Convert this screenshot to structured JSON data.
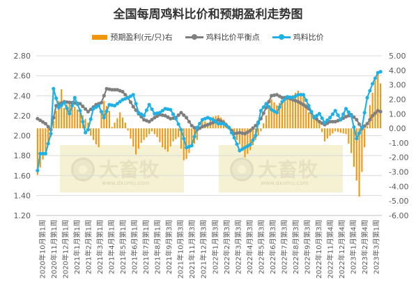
{
  "page": {
    "title": "全国每周鸡料比价和预期盈利走势图",
    "watermark_text": "大畜牧",
    "watermark_url": "www.dxumu.com"
  },
  "colors": {
    "bar": "#f0960f",
    "ratio_avg": "#7f7f7f",
    "ratio": "#1fb1e6",
    "grid": "#d9d9d9",
    "watermark": "#f5f2d3"
  },
  "chart_data": {
    "type": "bar",
    "title": "全国每周鸡料比价和预期盈利走势图",
    "legend_position": "top",
    "grid": true,
    "y_left": {
      "min": 1.2,
      "max": 2.8,
      "step": 0.2,
      "ticks": [
        "1.20",
        "1.40",
        "1.60",
        "1.80",
        "2.00",
        "2.20",
        "2.40",
        "2.60",
        "2.80"
      ]
    },
    "y_right": {
      "min": -6,
      "max": 5,
      "step": 1,
      "ticks": [
        "-6.00",
        "-5.00",
        "-4.00",
        "-3.00",
        "-2.00",
        "-1.00",
        "0.00",
        "1.00",
        "2.00",
        "3.00",
        "4.00",
        "5.00"
      ]
    },
    "x_labels": [
      "2020年10月第1周",
      "2020年11月第1周",
      "2020年12月第1周",
      "2021年1月第1周",
      "2021年2月第1周",
      "2021年3月第1周",
      "2021年4月第1周",
      "2021年5月第1周",
      "2021年6月第1周",
      "2021年7月第1周",
      "2021年8月第1周",
      "2021年9月第3周",
      "2021年10月第3周",
      "2021年11月第3周",
      "2021年12月第3周",
      "2022年1月第3周",
      "2022年2月第3周",
      "2022年3月第3周",
      "2022年4月第3周",
      "2022年5月第3周",
      "2022年6月第3周",
      "2022年7月第3周",
      "2022年8月第3周",
      "2022年9月第3周",
      "2022年10月第3周",
      "2022年11月第4周",
      "2022年12月第4周",
      "2023年1月第4周",
      "2023年2月第4周",
      "2023年3月第1周"
    ],
    "week_count": 130,
    "series": [
      {
        "name": "预期盈利(元/只)右",
        "type": "bar",
        "axis": "right",
        "anchors": [
          [
            0,
            -3.2
          ],
          [
            1,
            -2.7
          ],
          [
            3,
            -1.6
          ],
          [
            5,
            -0.6
          ],
          [
            6,
            0.5
          ],
          [
            8,
            1.9
          ],
          [
            9,
            2.7
          ],
          [
            10,
            1.4
          ],
          [
            12,
            1.9
          ],
          [
            15,
            1.3
          ],
          [
            17,
            0.9
          ],
          [
            19,
            0.4
          ],
          [
            20,
            -0.5
          ],
          [
            22,
            -1.1
          ],
          [
            23,
            -1.3
          ],
          [
            24,
            1.1
          ],
          [
            25,
            1.9
          ],
          [
            27,
            1.2
          ],
          [
            28,
            0.1
          ],
          [
            30,
            0.7
          ],
          [
            31,
            1.1
          ],
          [
            33,
            0.4
          ],
          [
            35,
            -0.7
          ],
          [
            37,
            -1.8
          ],
          [
            39,
            -1.0
          ],
          [
            41,
            -0.6
          ],
          [
            43,
            -0.2
          ],
          [
            45,
            -0.6
          ],
          [
            47,
            -1.3
          ],
          [
            49,
            -1.6
          ],
          [
            51,
            -0.9
          ],
          [
            53,
            -0.6
          ],
          [
            55,
            -2.2
          ],
          [
            56,
            -2.1
          ],
          [
            58,
            -1.3
          ],
          [
            60,
            -0.8
          ],
          [
            62,
            0.7
          ],
          [
            64,
            0.3
          ],
          [
            66,
            0.8
          ],
          [
            68,
            0.9
          ],
          [
            70,
            0.6
          ],
          [
            72,
            0.2
          ],
          [
            74,
            -0.5
          ],
          [
            76,
            -1.1
          ],
          [
            78,
            -2.0
          ],
          [
            80,
            -1.5
          ],
          [
            82,
            -0.8
          ],
          [
            84,
            -0.2
          ],
          [
            86,
            0.9
          ],
          [
            88,
            2.0
          ],
          [
            90,
            1.6
          ],
          [
            92,
            1.9
          ],
          [
            94,
            2.1
          ],
          [
            96,
            2.3
          ],
          [
            98,
            2.6
          ],
          [
            100,
            2.3
          ],
          [
            102,
            1.1
          ],
          [
            104,
            0.9
          ],
          [
            106,
            0.4
          ],
          [
            108,
            -0.9
          ],
          [
            110,
            -0.5
          ],
          [
            112,
            -0.2
          ],
          [
            114,
            -0.3
          ],
          [
            116,
            -0.4
          ],
          [
            118,
            -1.7
          ],
          [
            120,
            -3.6
          ],
          [
            121,
            -4.7
          ],
          [
            123,
            -1.3
          ],
          [
            125,
            1.6
          ],
          [
            127,
            3.3
          ],
          [
            128,
            3.8
          ],
          [
            129,
            3.1
          ]
        ]
      },
      {
        "name": "鸡料比价平衡点",
        "type": "line",
        "axis": "left",
        "anchors": [
          [
            0,
            2.17
          ],
          [
            3,
            2.12
          ],
          [
            5,
            2.06
          ],
          [
            7,
            2.3
          ],
          [
            10,
            2.34
          ],
          [
            13,
            2.33
          ],
          [
            16,
            2.32
          ],
          [
            19,
            2.24
          ],
          [
            22,
            2.31
          ],
          [
            24,
            2.33
          ],
          [
            26,
            2.47
          ],
          [
            28,
            2.46
          ],
          [
            30,
            2.46
          ],
          [
            32,
            2.44
          ],
          [
            34,
            2.38
          ],
          [
            36,
            2.29
          ],
          [
            38,
            2.22
          ],
          [
            40,
            2.16
          ],
          [
            42,
            2.14
          ],
          [
            44,
            2.18
          ],
          [
            46,
            2.21
          ],
          [
            48,
            2.2
          ],
          [
            50,
            2.17
          ],
          [
            52,
            2.18
          ],
          [
            54,
            2.23
          ],
          [
            56,
            2.18
          ],
          [
            58,
            2.1
          ],
          [
            60,
            2.06
          ],
          [
            62,
            2.09
          ],
          [
            64,
            2.11
          ],
          [
            66,
            2.13
          ],
          [
            68,
            2.16
          ],
          [
            70,
            2.13
          ],
          [
            72,
            2.08
          ],
          [
            74,
            2.02
          ],
          [
            76,
            2.03
          ],
          [
            78,
            2.02
          ],
          [
            80,
            2.05
          ],
          [
            82,
            2.1
          ],
          [
            84,
            2.17
          ],
          [
            86,
            2.28
          ],
          [
            88,
            2.4
          ],
          [
            90,
            2.41
          ],
          [
            92,
            2.38
          ],
          [
            94,
            2.38
          ],
          [
            96,
            2.36
          ],
          [
            98,
            2.34
          ],
          [
            100,
            2.31
          ],
          [
            102,
            2.27
          ],
          [
            104,
            2.19
          ],
          [
            106,
            2.14
          ],
          [
            108,
            2.11
          ],
          [
            110,
            2.14
          ],
          [
            112,
            2.14
          ],
          [
            114,
            2.16
          ],
          [
            116,
            2.19
          ],
          [
            118,
            2.21
          ],
          [
            120,
            2.16
          ],
          [
            122,
            2.07
          ],
          [
            124,
            2.12
          ],
          [
            126,
            2.2
          ],
          [
            128,
            2.25
          ],
          [
            129,
            2.24
          ]
        ]
      },
      {
        "name": "鸡料比价",
        "type": "line",
        "axis": "left",
        "anchors": [
          [
            0,
            1.65
          ],
          [
            1,
            1.82
          ],
          [
            3,
            1.82
          ],
          [
            5,
            2.02
          ],
          [
            6,
            2.47
          ],
          [
            8,
            2.28
          ],
          [
            10,
            2.33
          ],
          [
            12,
            2.22
          ],
          [
            14,
            2.38
          ],
          [
            16,
            2.25
          ],
          [
            18,
            2.03
          ],
          [
            19,
            2.06
          ],
          [
            21,
            2.27
          ],
          [
            23,
            2.3
          ],
          [
            25,
            2.18
          ],
          [
            27,
            2.31
          ],
          [
            29,
            2.3
          ],
          [
            32,
            2.36
          ],
          [
            34,
            2.38
          ],
          [
            36,
            2.41
          ],
          [
            38,
            2.23
          ],
          [
            40,
            2.2
          ],
          [
            42,
            2.31
          ],
          [
            44,
            2.22
          ],
          [
            46,
            2.23
          ],
          [
            48,
            2.27
          ],
          [
            50,
            2.26
          ],
          [
            52,
            2.17
          ],
          [
            54,
            2.06
          ],
          [
            56,
            1.88
          ],
          [
            58,
            1.9
          ],
          [
            60,
            2.08
          ],
          [
            62,
            2.16
          ],
          [
            64,
            2.18
          ],
          [
            66,
            2.16
          ],
          [
            68,
            2.12
          ],
          [
            70,
            2.12
          ],
          [
            72,
            2.08
          ],
          [
            74,
            1.98
          ],
          [
            76,
            1.85
          ],
          [
            78,
            1.88
          ],
          [
            80,
            1.91
          ],
          [
            82,
            2.0
          ],
          [
            84,
            2.25
          ],
          [
            86,
            2.32
          ],
          [
            88,
            2.26
          ],
          [
            90,
            2.23
          ],
          [
            92,
            2.34
          ],
          [
            94,
            2.39
          ],
          [
            96,
            2.38
          ],
          [
            98,
            2.41
          ],
          [
            100,
            2.41
          ],
          [
            102,
            2.3
          ],
          [
            104,
            2.18
          ],
          [
            106,
            2.22
          ],
          [
            108,
            2.13
          ],
          [
            110,
            2.18
          ],
          [
            112,
            2.25
          ],
          [
            114,
            2.16
          ],
          [
            116,
            2.27
          ],
          [
            118,
            2.2
          ],
          [
            120,
            1.97
          ],
          [
            122,
            2.08
          ],
          [
            124,
            2.38
          ],
          [
            126,
            2.52
          ],
          [
            128,
            2.63
          ],
          [
            129,
            2.64
          ]
        ]
      }
    ]
  }
}
